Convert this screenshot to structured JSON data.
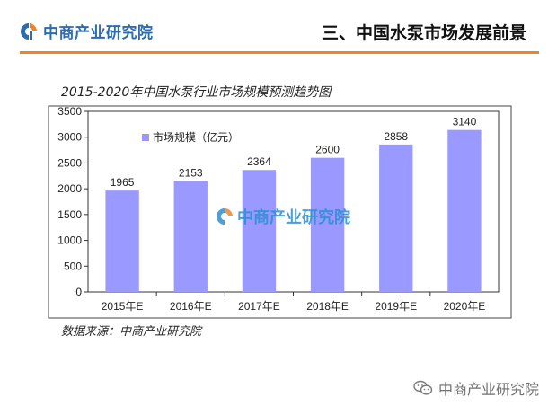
{
  "header": {
    "logo_text": "中商产业研究院",
    "section_title": "三、中国水泵市场发展前景",
    "accent_color": "#f0822e",
    "brand_color": "#2b6cb0"
  },
  "chart_title": "2015-2020年中国水泵行业市场规模预测趋势图",
  "source": "数据来源：中商产业研究院",
  "watermark": {
    "center_text": "中商产业研究院",
    "bottom_text": "中商产业研究院",
    "bottom_icon": "wechat-icon"
  },
  "chart_data": {
    "type": "bar",
    "title": "2015-2020年中国水泵行业市场规模预测趋势图",
    "categories": [
      "2015年E",
      "2016年E",
      "2017年E",
      "2018年E",
      "2019年E",
      "2020年E"
    ],
    "series": [
      {
        "name": "市场规模（亿元）",
        "values": [
          1965,
          2153,
          2364,
          2600,
          2858,
          3140
        ],
        "color": "#9999ff"
      }
    ],
    "ylim": [
      0,
      3500
    ],
    "yticks": [
      0,
      500,
      1000,
      1500,
      2000,
      2500,
      3000,
      3500
    ],
    "grid": false,
    "legend_position": "top-left",
    "xlabel": "",
    "ylabel": ""
  }
}
